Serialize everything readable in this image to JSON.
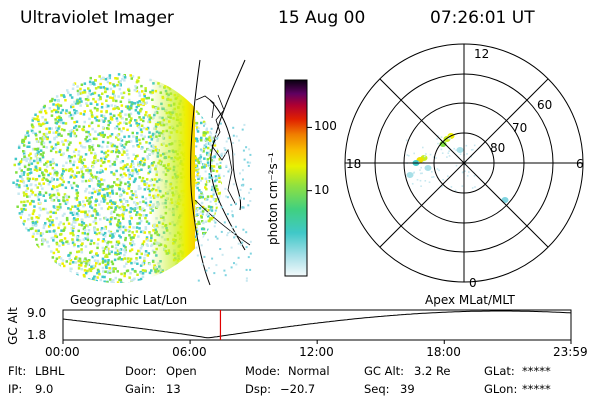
{
  "header": {
    "instrument": "Ultraviolet Imager",
    "date": "15 Aug 00",
    "time": "07:26:01 UT"
  },
  "colorbar": {
    "label": "photon cm⁻²s⁻¹",
    "ticks": [
      {
        "label": "100",
        "value": 100
      },
      {
        "label": "10",
        "value": 10
      }
    ],
    "scale": "log",
    "colors": [
      "#e8f4f8",
      "#c8e8f0",
      "#80d4e0",
      "#40c8c8",
      "#40d080",
      "#80e040",
      "#c8f020",
      "#f0f000",
      "#f8c800",
      "#f89000",
      "#f04000",
      "#d80000",
      "#a00040",
      "#600060",
      "#200040",
      "#000000"
    ]
  },
  "polar_plot": {
    "mlt_labels": [
      "12",
      "18",
      "6",
      "0"
    ],
    "lat_labels": [
      "60",
      "70",
      "80"
    ]
  },
  "panel_labels": {
    "left": "Geographic Lat/Lon",
    "right": "Apex MLat/MLT"
  },
  "altitude_plot": {
    "ylabel": "GC Alt",
    "y_ticks": [
      "9.0",
      "1.8"
    ],
    "x_ticks": [
      "00:00",
      "06:00",
      "12:00",
      "18:00",
      "23:59"
    ],
    "marker_time": "07:26",
    "marker_color": "#e00000",
    "min_time": "06:50"
  },
  "info": {
    "col1": [
      {
        "key": "Flt:",
        "val": "LBHL"
      },
      {
        "key": "IP:",
        "val": "9.0"
      }
    ],
    "col2": [
      {
        "key": "Door:",
        "val": "Open"
      },
      {
        "key": "Gain:",
        "val": "13"
      }
    ],
    "col3": [
      {
        "key": "Mode:",
        "val": "Normal"
      },
      {
        "key": "Dsp:",
        "val": "−20.7"
      }
    ],
    "col4": [
      {
        "key": "GC Alt:",
        "val": "3.2 Re"
      },
      {
        "key": "Seq:",
        "val": "39"
      }
    ],
    "col5": [
      {
        "key": "GLat:",
        "val": "*****"
      },
      {
        "key": "GLon:",
        "val": "*****"
      }
    ]
  }
}
